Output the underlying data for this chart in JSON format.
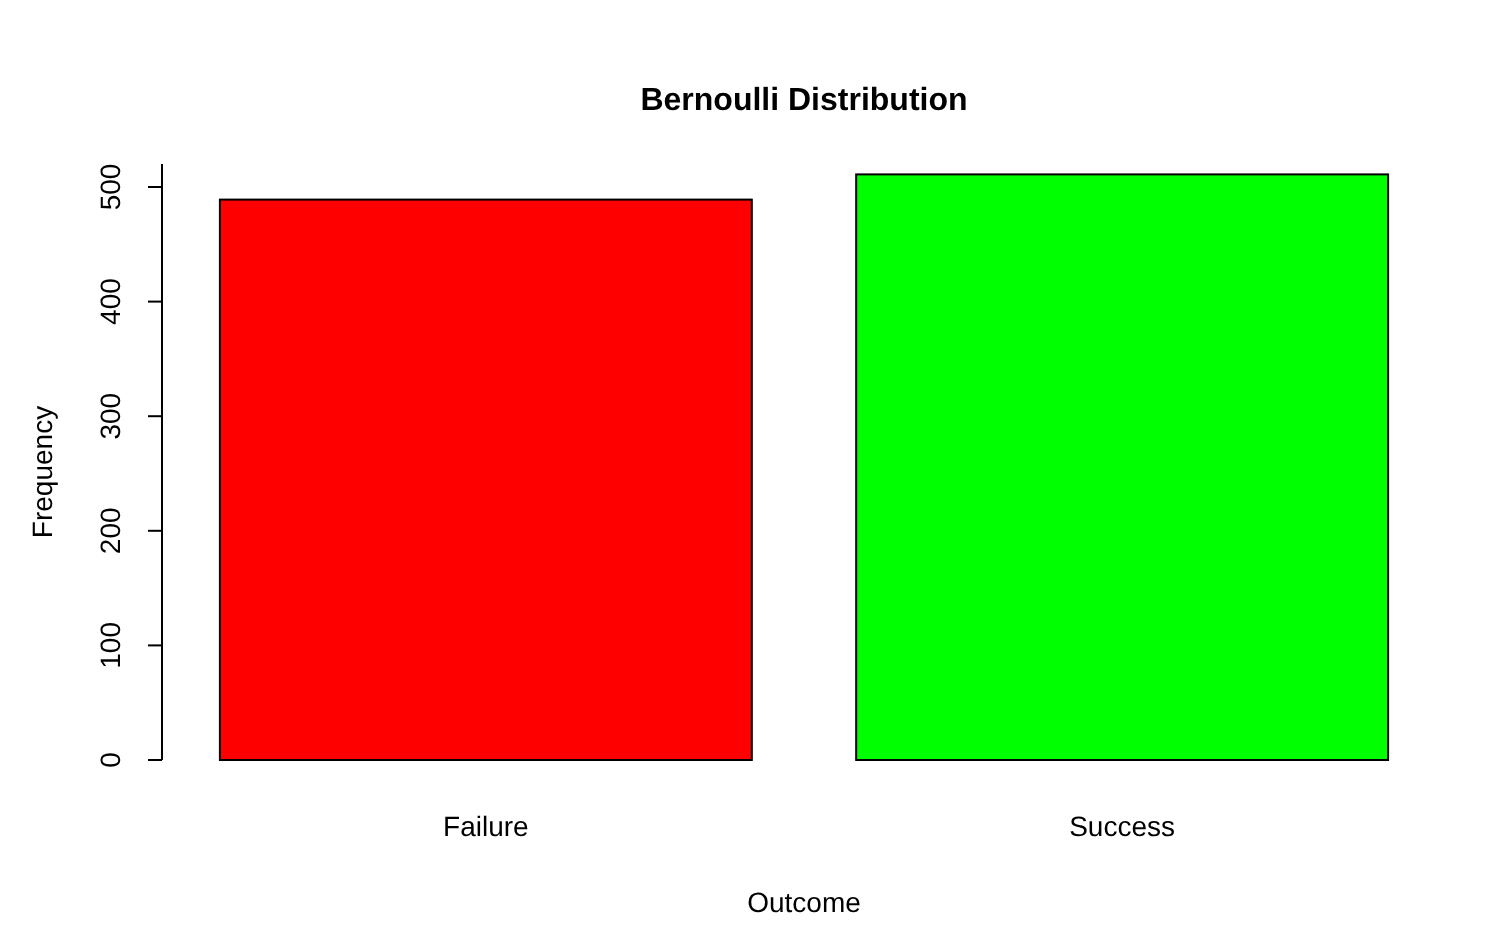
{
  "chart_data": {
    "type": "bar",
    "title": "Bernoulli Distribution",
    "xlabel": "Outcome",
    "ylabel": "Frequency",
    "categories": [
      "Failure",
      "Success"
    ],
    "values": [
      489,
      511
    ],
    "colors": [
      "#ff0000",
      "#00ff00"
    ],
    "ylim": [
      0,
      520
    ],
    "yticks": [
      0,
      100,
      200,
      300,
      400,
      500
    ]
  }
}
